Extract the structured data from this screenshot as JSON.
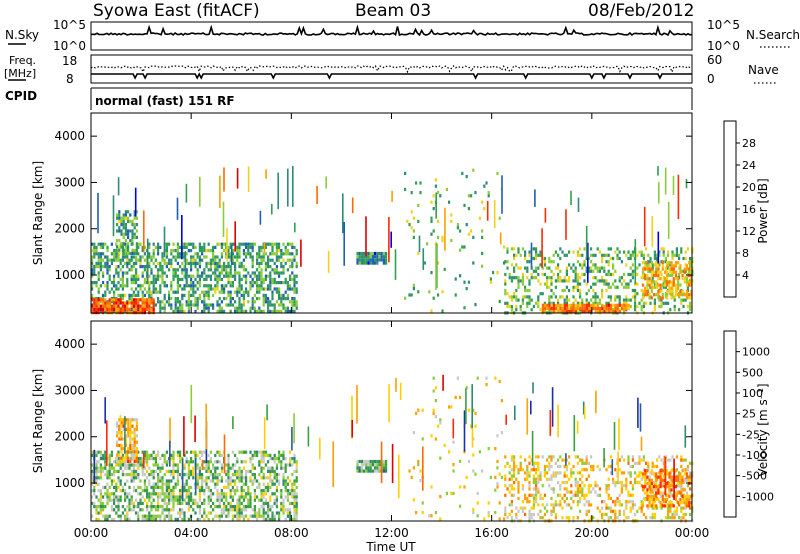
{
  "header": {
    "station": "Syowa East (fitACF)",
    "beam": "Beam 03",
    "date": "08/Feb/2012"
  },
  "top_panels": {
    "nsky_label": "N.Sky",
    "nsearch_label": "N.Search",
    "count_ticks_left": [
      "10^5",
      "10^0"
    ],
    "count_ticks_right": [
      "10^5",
      "10^0"
    ],
    "freq_label_line1": "Freq.",
    "freq_label_line2": "[MHz]",
    "freq_ticks": [
      "18",
      "8"
    ],
    "nave_label": "Nave",
    "nave_ticks": [
      "60",
      "0"
    ],
    "cpid_label": "CPID",
    "cpid_text": "normal (fast) 151 RF"
  },
  "axes": {
    "ylabel": "Slant Range [km]",
    "yticks": [
      "4000",
      "3000",
      "2000",
      "1000"
    ],
    "xticks": [
      "00:00",
      "04:00",
      "08:00",
      "12:00",
      "16:00",
      "20:00",
      "00:00"
    ],
    "xlabel": "Time UT"
  },
  "power_colorbar": {
    "label": "Power [dB]",
    "ticks": [
      "28",
      "24",
      "20",
      "16",
      "12",
      "8",
      "4"
    ],
    "colors": [
      "#0000ff",
      "#1f5fb4",
      "#2e8a7a",
      "#30a050",
      "#8ccc3a",
      "#f0d21e",
      "#ffa000",
      "#ff6a00",
      "#ff2a00",
      "#e00000"
    ]
  },
  "velocity_colorbar": {
    "label": "Velocity [m s⁻¹]",
    "ticks": [
      "1000",
      "500",
      "100",
      "25",
      "-25",
      "-100",
      "-500",
      "-1000"
    ],
    "colors": [
      "#1a2fb0",
      "#2a5aa0",
      "#2e8a6a",
      "#3aa040",
      "#8ccc3a",
      "#c8c8c8",
      "#ffd000",
      "#ffa000",
      "#ff6a00",
      "#ff2a00",
      "#e00000"
    ]
  },
  "chart_data": [
    {
      "type": "line",
      "name": "N.Sky / N.Search",
      "x_range": [
        0,
        24
      ],
      "note_scale": "log",
      "ylim": [
        1,
        100000
      ]
    },
    {
      "type": "line",
      "name": "Freq / Nave",
      "x_range": [
        0,
        24
      ],
      "freq_ylim": [
        8,
        18
      ],
      "nave_ylim": [
        0,
        60
      ]
    },
    {
      "type": "heatmap",
      "name": "Power",
      "xlabel": "Time UT",
      "ylabel": "Slant Range [km]",
      "x_range_hours": [
        0,
        24
      ],
      "ylim": [
        180,
        4500
      ],
      "zlim": [
        0,
        30
      ],
      "features": [
        {
          "t0": 0.0,
          "t1": 8.2,
          "r0": 200,
          "r1": 1700,
          "density": 0.55,
          "z": 10
        },
        {
          "t0": 0.0,
          "t1": 2.5,
          "r0": 200,
          "r1": 500,
          "density": 0.9,
          "z": 24
        },
        {
          "t0": 1.0,
          "t1": 1.8,
          "r0": 1500,
          "r1": 2400,
          "density": 0.6,
          "z": 10
        },
        {
          "t0": 10.6,
          "t1": 11.8,
          "r0": 1250,
          "r1": 1500,
          "density": 0.95,
          "z": 8
        },
        {
          "t0": 12.5,
          "t1": 16.5,
          "r0": 200,
          "r1": 3300,
          "density": 0.05,
          "z": 12
        },
        {
          "t0": 16.5,
          "t1": 24.0,
          "r0": 200,
          "r1": 1600,
          "density": 0.35,
          "z": 12
        },
        {
          "t0": 18.0,
          "t1": 21.5,
          "r0": 230,
          "r1": 380,
          "density": 0.9,
          "z": 22
        },
        {
          "t0": 22.0,
          "t1": 24.0,
          "r0": 500,
          "r1": 1300,
          "density": 0.6,
          "z": 18
        }
      ]
    },
    {
      "type": "heatmap",
      "name": "Velocity",
      "xlabel": "Time UT",
      "ylabel": "Slant Range [km]",
      "x_range_hours": [
        0,
        24
      ],
      "ylim": [
        180,
        4500
      ],
      "zlim": [
        -1000,
        1000
      ],
      "features": [
        {
          "t0": 0.0,
          "t1": 8.2,
          "r0": 200,
          "r1": 1700,
          "density": 0.55,
          "z": -200
        },
        {
          "t0": 1.0,
          "t1": 1.8,
          "r0": 1500,
          "r1": 2400,
          "density": 0.6,
          "z": 300
        },
        {
          "t0": 10.6,
          "t1": 11.8,
          "r0": 1250,
          "r1": 1500,
          "density": 0.95,
          "z": -300
        },
        {
          "t0": 12.5,
          "t1": 16.5,
          "r0": 200,
          "r1": 3300,
          "density": 0.05,
          "z": 100
        },
        {
          "t0": 16.5,
          "t1": 24.0,
          "r0": 200,
          "r1": 1600,
          "density": 0.35,
          "z": 150
        },
        {
          "t0": 22.0,
          "t1": 24.0,
          "r0": 500,
          "r1": 1300,
          "density": 0.6,
          "z": 400
        }
      ]
    }
  ]
}
